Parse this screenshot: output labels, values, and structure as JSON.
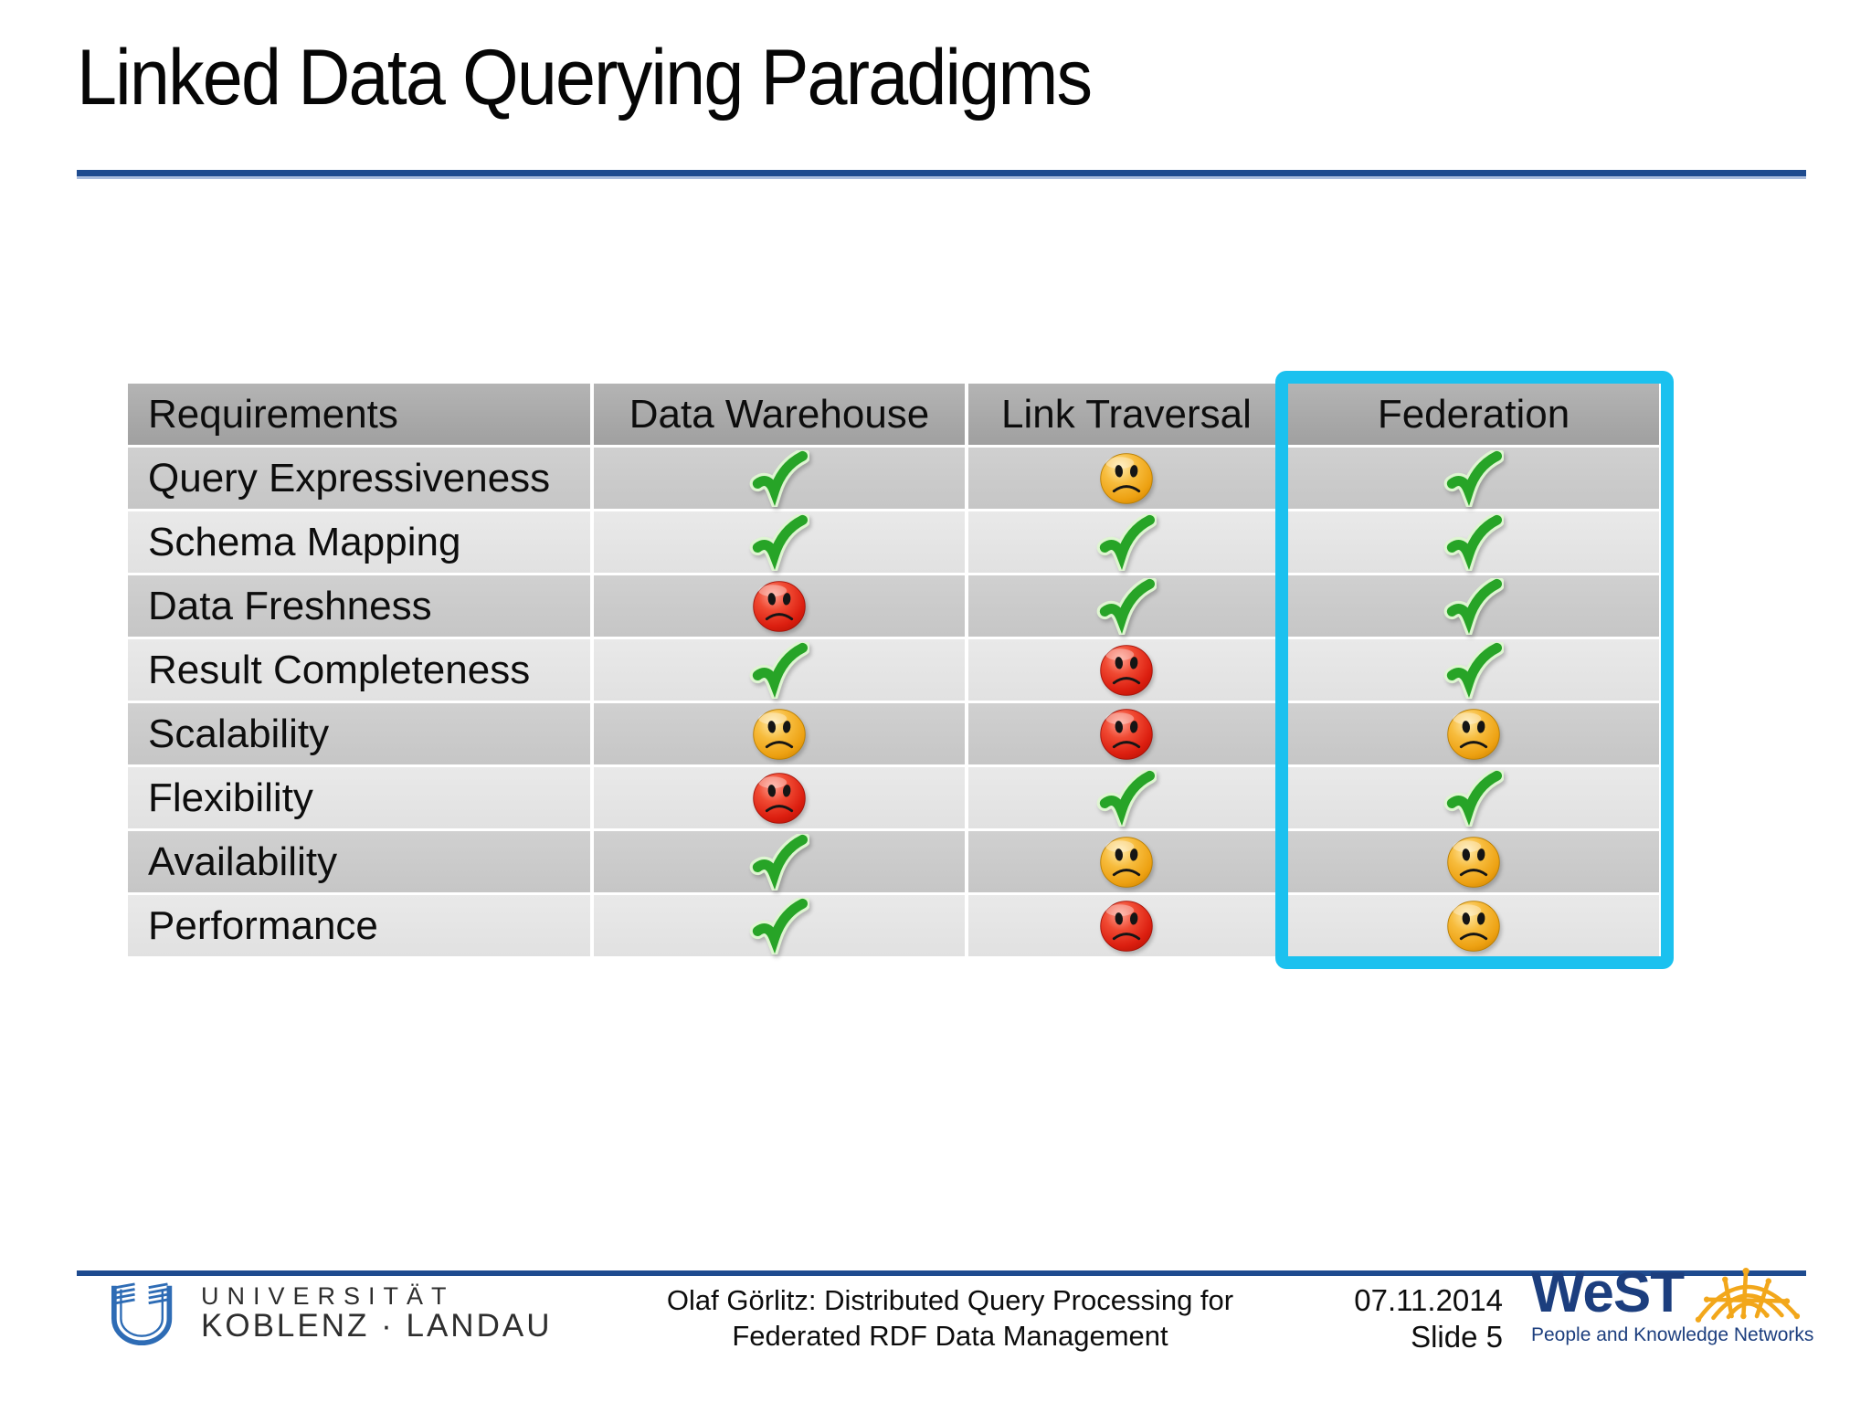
{
  "slide": {
    "title": "Linked Data Querying Paradigms",
    "accent_rule_color": "#1E4B8F",
    "highlight_box_color": "#1BC1EF"
  },
  "table": {
    "columns": [
      "Requirements",
      "Data Warehouse",
      "Link Traversal",
      "Federation"
    ],
    "highlighted_column": "Federation",
    "rows": [
      {
        "label": "Query Expressiveness",
        "values": [
          "check",
          "sad-yellow",
          "check"
        ]
      },
      {
        "label": "Schema Mapping",
        "values": [
          "check",
          "check",
          "check"
        ]
      },
      {
        "label": "Data Freshness",
        "values": [
          "sad-red",
          "check",
          "check"
        ]
      },
      {
        "label": "Result Completeness",
        "values": [
          "check",
          "sad-red",
          "check"
        ]
      },
      {
        "label": "Scalability",
        "values": [
          "sad-yellow",
          "sad-red",
          "sad-yellow"
        ]
      },
      {
        "label": "Flexibility",
        "values": [
          "sad-red",
          "check",
          "check"
        ]
      },
      {
        "label": "Availability",
        "values": [
          "check",
          "sad-yellow",
          "sad-yellow"
        ]
      },
      {
        "label": "Performance",
        "values": [
          "check",
          "sad-red",
          "sad-yellow"
        ]
      }
    ],
    "icons": {
      "check": {
        "name": "check-icon",
        "color": "#27A427",
        "meaning": "good"
      },
      "sad-yellow": {
        "name": "sad-face-yellow-icon",
        "color": "#EDA112",
        "meaning": "mediocre"
      },
      "sad-red": {
        "name": "sad-face-red-icon",
        "color": "#DC1F10",
        "meaning": "bad"
      }
    }
  },
  "footer": {
    "university": {
      "line1": "UNIVERSITÄT",
      "line2": "KOBLENZ · LANDAU"
    },
    "caption_line1": "Olaf Görlitz: Distributed Query Processing for",
    "caption_line2": "Federated RDF Data Management",
    "date": "07.11.2014",
    "slide_number": "Slide 5",
    "west": {
      "name": "WeST",
      "tagline": "People and Knowledge Networks"
    }
  }
}
